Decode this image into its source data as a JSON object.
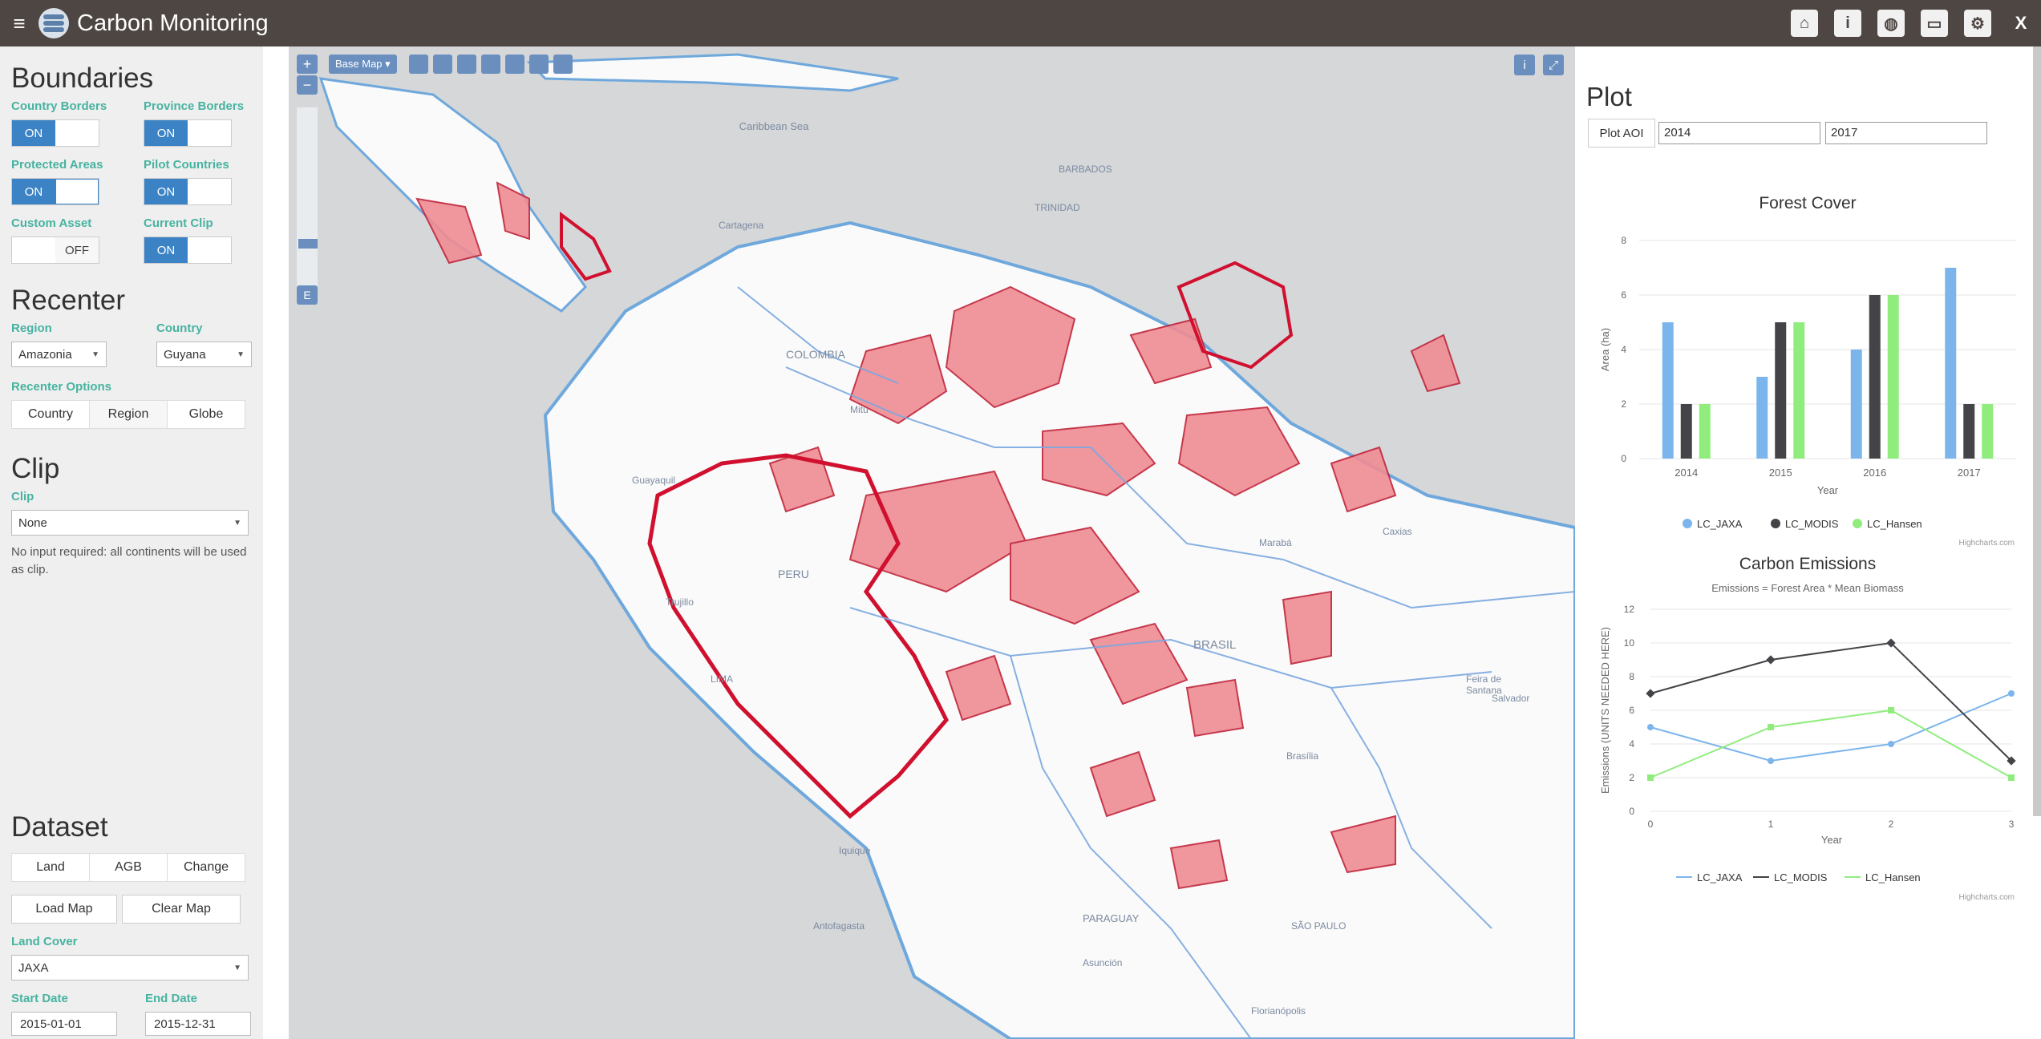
{
  "app": {
    "title": "Carbon Monitoring"
  },
  "top_icons": [
    "home-icon",
    "info-icon",
    "globe-icon",
    "inbox-icon",
    "gear-icon"
  ],
  "close_label": "X",
  "sidebar": {
    "boundaries": {
      "heading": "Boundaries",
      "toggles": [
        {
          "label": "Country Borders",
          "state": "ON"
        },
        {
          "label": "Province Borders",
          "state": "ON"
        },
        {
          "label": "Protected Areas",
          "state": "ON"
        },
        {
          "label": "Pilot Countries",
          "state": "ON"
        },
        {
          "label": "Custom Asset",
          "state": "OFF"
        },
        {
          "label": "Current Clip",
          "state": "ON"
        }
      ]
    },
    "recenter": {
      "heading": "Recenter",
      "region_label": "Region",
      "region_value": "Amazonia",
      "country_label": "Country",
      "country_value": "Guyana",
      "options_label": "Recenter Options",
      "options": [
        "Country",
        "Region",
        "Globe"
      ],
      "selected_option": "Region"
    },
    "clip": {
      "heading": "Clip",
      "label": "Clip",
      "value": "None",
      "note": "No input required: all continents will be used as clip."
    },
    "dataset": {
      "heading": "Dataset",
      "tabs": [
        "Land",
        "AGB",
        "Change"
      ],
      "active_tab": "Land",
      "load_button": "Load Map",
      "clear_button": "Clear Map",
      "land_cover_label": "Land Cover",
      "land_cover_value": "JAXA",
      "start_label": "Start Date",
      "start_value": "2015-01-01",
      "end_label": "End Date",
      "end_value": "2015-12-31"
    }
  },
  "map": {
    "base_map_label": "Base Map ▾",
    "zoom_in": "+",
    "zoom_out": "−",
    "e_button": "E",
    "labels": {
      "caribbean": "Caribbean Sea",
      "barbados": "BARBADOS",
      "trinidad": "TRINIDAD",
      "cartagena": "Cartagena",
      "colombia": "COLOMBIA",
      "mitu": "Mitú",
      "guayaquil": "Guayaquil",
      "peru": "PERU",
      "lima": "LIMA",
      "trujillo": "Trujillo",
      "brasil": "BRASIL",
      "caxias": "Caxias",
      "maraba": "Marabá",
      "feira": "Feira de Santana",
      "salvador": "Salvador",
      "brasilia": "Brasília",
      "paraguay": "PARAGUAY",
      "asuncion": "Asunción",
      "antofagasta": "Antofagasta",
      "iquique": "Iquique",
      "sao_paulo": "SÃO PAULO",
      "florianopolis": "Florianópolis"
    }
  },
  "plot": {
    "heading": "Plot",
    "aoi_button": "Plot AOI",
    "start_year": "2014",
    "end_year": "2017",
    "credit": "Highcharts.com"
  },
  "chart_data": [
    {
      "type": "bar",
      "title": "Forest Cover",
      "xlabel": "Year",
      "ylabel": "Area (ha)",
      "categories": [
        "2014",
        "2015",
        "2016",
        "2017"
      ],
      "ylim": [
        0,
        8
      ],
      "yticks": [
        "0",
        "2",
        "4",
        "6",
        "8"
      ],
      "series": [
        {
          "name": "LC_JAXA",
          "color": "#7cb5ec",
          "values": [
            5,
            3,
            4,
            7
          ]
        },
        {
          "name": "LC_MODIS",
          "color": "#434348",
          "values": [
            2,
            5,
            6,
            2
          ]
        },
        {
          "name": "LC_Hansen",
          "color": "#90ed7d",
          "values": [
            2,
            5,
            6,
            2
          ]
        }
      ],
      "legend": "bottom"
    },
    {
      "type": "line",
      "title": "Carbon Emissions",
      "subtitle": "Emissions = Forest Area * Mean Biomass",
      "xlabel": "Year",
      "ylabel": "Emissions (UNITS NEEDED HERE)",
      "x": [
        0,
        1,
        2,
        3
      ],
      "xticks": [
        "0",
        "1",
        "2",
        "3"
      ],
      "ylim": [
        0,
        12
      ],
      "yticks": [
        "0",
        "2",
        "4",
        "6",
        "8",
        "10",
        "12"
      ],
      "series": [
        {
          "name": "LC_JAXA",
          "color": "#7cb5ec",
          "values": [
            5,
            3,
            4,
            7
          ]
        },
        {
          "name": "LC_MODIS",
          "color": "#434348",
          "values": [
            7,
            9,
            10,
            3
          ]
        },
        {
          "name": "LC_Hansen",
          "color": "#90ed7d",
          "values": [
            2,
            5,
            6,
            2
          ]
        }
      ],
      "legend": "bottom"
    }
  ]
}
